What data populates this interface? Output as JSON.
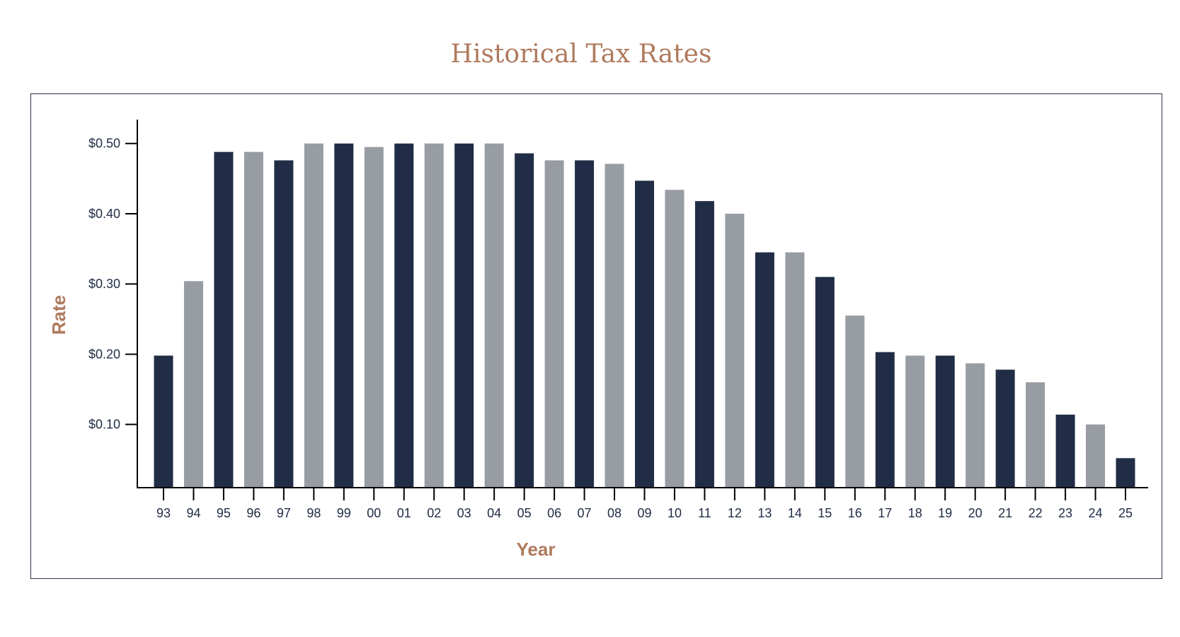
{
  "chart_data": {
    "type": "bar",
    "title": "Historical Tax Rates",
    "xlabel": "Year",
    "ylabel": "Rate",
    "categories": [
      "93",
      "94",
      "95",
      "96",
      "97",
      "98",
      "99",
      "00",
      "01",
      "02",
      "03",
      "04",
      "05",
      "06",
      "07",
      "08",
      "09",
      "10",
      "11",
      "12",
      "13",
      "14",
      "15",
      "16",
      "17",
      "18",
      "19",
      "20",
      "21",
      "22",
      "23",
      "24",
      "25"
    ],
    "values": [
      0.198,
      0.304,
      0.488,
      0.488,
      0.476,
      0.5,
      0.5,
      0.495,
      0.5,
      0.5,
      0.5,
      0.5,
      0.486,
      0.476,
      0.476,
      0.471,
      0.447,
      0.434,
      0.418,
      0.4,
      0.345,
      0.345,
      0.31,
      0.255,
      0.203,
      0.198,
      0.198,
      0.187,
      0.178,
      0.16,
      0.114,
      0.1,
      0.052
    ],
    "yticks": [
      0.1,
      0.2,
      0.3,
      0.4,
      0.5
    ],
    "ytick_labels": [
      "$0.10",
      "$0.20",
      "$0.30",
      "$0.40",
      "$0.50"
    ],
    "ylim": [
      0.01,
      0.534
    ],
    "grid": false,
    "colors": {
      "dark": "#212d46",
      "light": "#989ca3",
      "accent": "#b07a5e",
      "frame": "#2a3550"
    },
    "bar_color_pattern": "alternating dark/light (with 98-04 and 13-14 following the sequence shown)"
  }
}
